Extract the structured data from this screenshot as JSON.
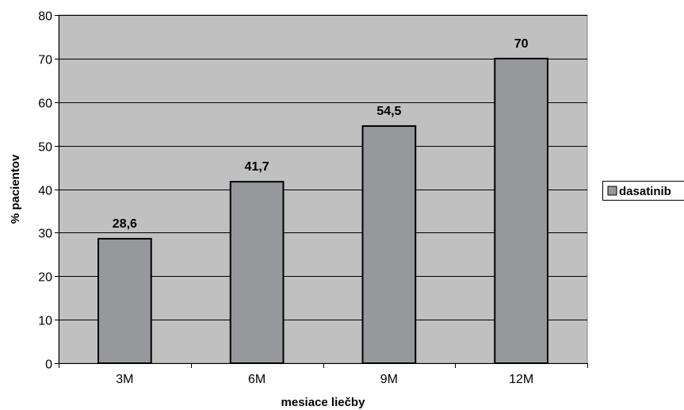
{
  "chart_data": {
    "type": "bar",
    "categories": [
      "3M",
      "6M",
      "9M",
      "12M"
    ],
    "series": [
      {
        "name": "dasatinib",
        "values": [
          28.6,
          41.7,
          54.5,
          70
        ],
        "labels": [
          "28,6",
          "41,7",
          "54,5",
          "70"
        ]
      }
    ],
    "xlabel": "mesiace liečby",
    "ylabel": "% pacientov",
    "ylim": [
      0,
      80
    ],
    "yticks": [
      0,
      10,
      20,
      30,
      40,
      50,
      60,
      70,
      80
    ],
    "grid": true,
    "legend_position": "right",
    "colors": {
      "plot_background": "#c0c0c0",
      "bar_fill": "#96989b",
      "bar_stroke": "#000000",
      "grid": "#000000"
    }
  }
}
